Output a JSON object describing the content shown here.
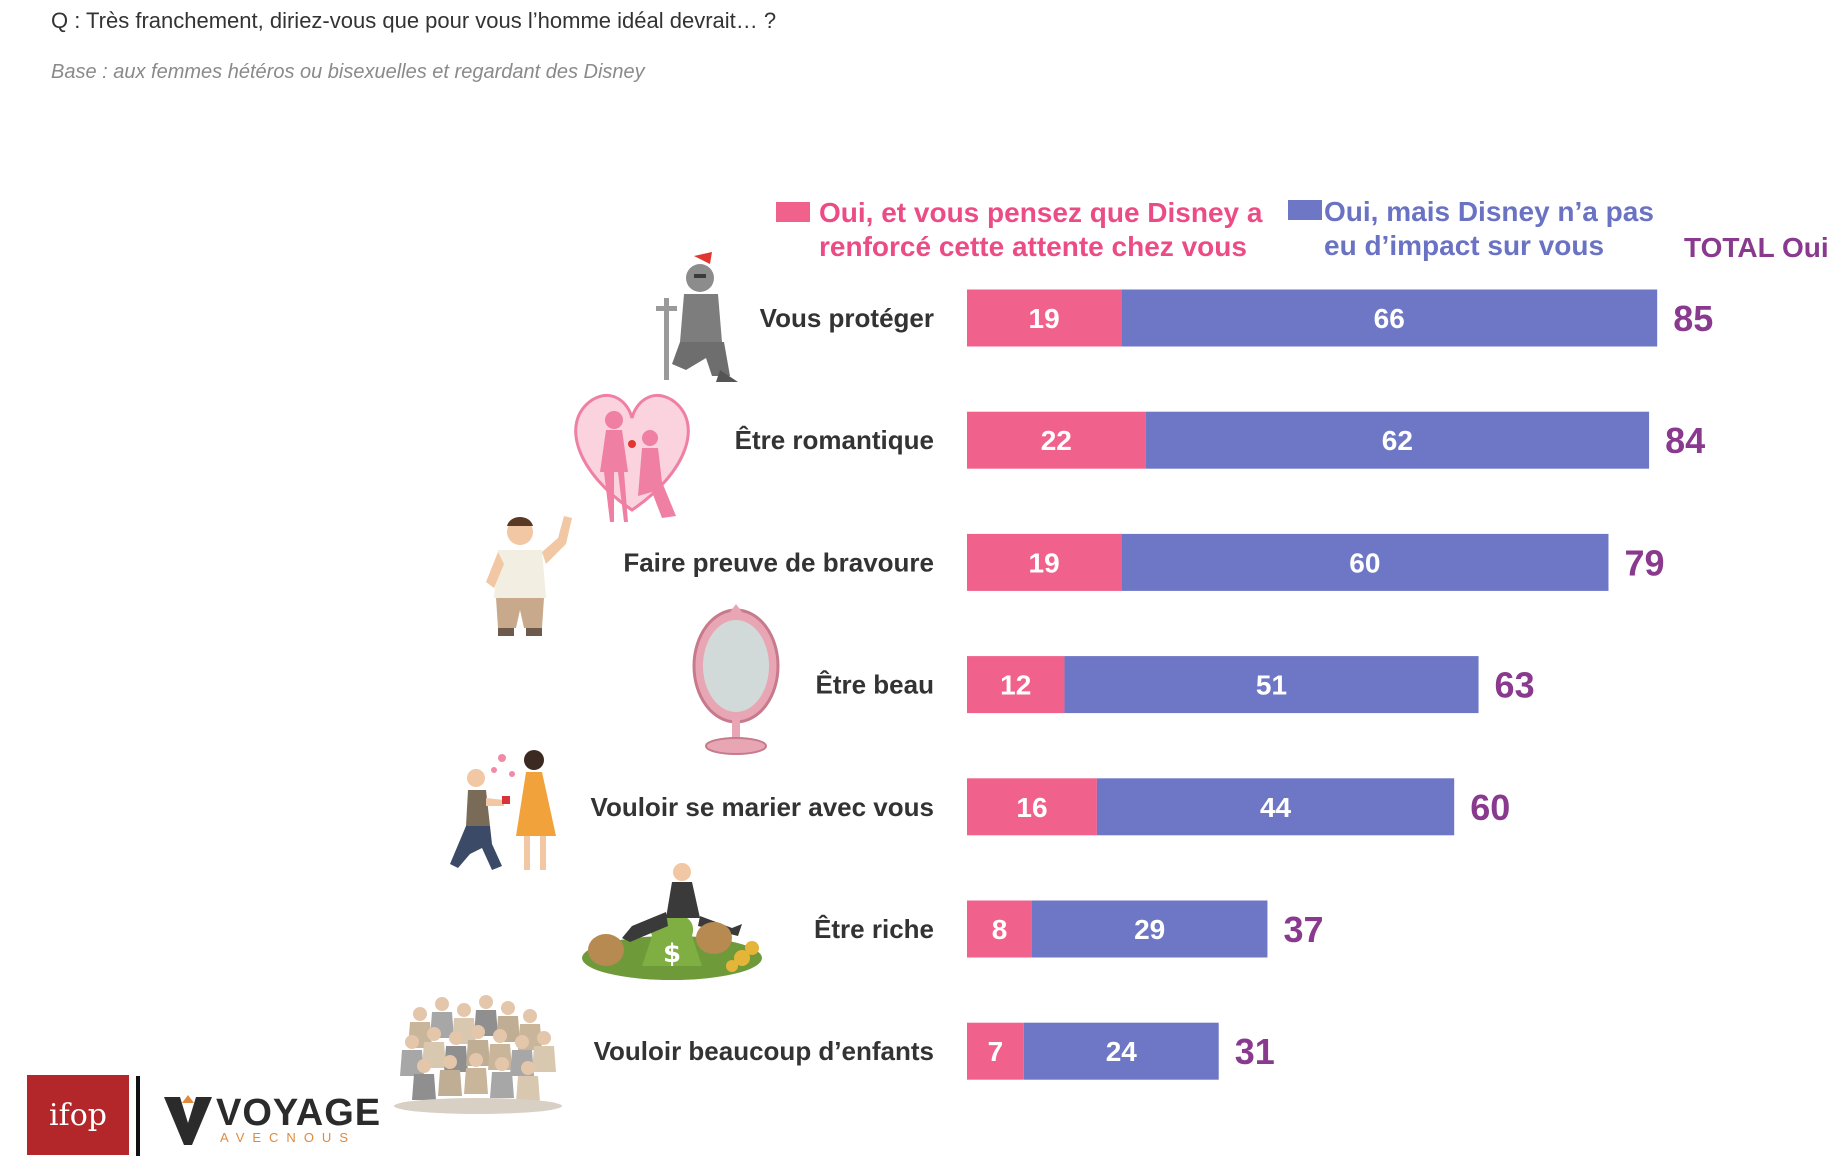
{
  "header": {
    "question": "Q : Très franchement, diriez-vous que pour vous l’homme idéal devrait… ?",
    "base": "Base : aux femmes hétéros ou bisexuelles et regardant des Disney"
  },
  "legend": {
    "pink_line1": "Oui, et vous pensez que Disney a",
    "pink_line2": "renforcé cette attente chez vous",
    "blue_line1": "Oui, mais Disney n’a pas",
    "blue_line2": "eu d’impact sur vous",
    "total": "TOTAL Oui"
  },
  "colors": {
    "pink": "#f0628c",
    "blue": "#6e76c6",
    "total": "#8a3a8e",
    "pink_text": "#ec4c86",
    "blue_text": "#6a72c4"
  },
  "icons": [
    "knight-icon",
    "romantic-couple-heart-icon",
    "brave-man-icon",
    "mirror-icon",
    "proposal-icon",
    "rich-man-money-bags-icon",
    "large-family-icon"
  ],
  "chart_data": {
    "type": "bar",
    "orientation": "horizontal",
    "stacked": true,
    "categories": [
      "Vous protéger",
      "Être romantique",
      "Faire preuve de bravoure",
      "Être beau",
      "Vouloir se marier avec vous",
      "Être riche",
      "Vouloir beaucoup d’enfants"
    ],
    "series": [
      {
        "name": "Oui, et vous pensez que Disney a renforcé cette attente chez vous",
        "values": [
          19,
          22,
          19,
          12,
          16,
          8,
          7
        ]
      },
      {
        "name": "Oui, mais Disney n’a pas eu d’impact sur vous",
        "values": [
          66,
          62,
          60,
          51,
          44,
          29,
          24
        ]
      }
    ],
    "totals": [
      85,
      84,
      79,
      63,
      60,
      37,
      31
    ],
    "legend_position": "top",
    "grid": false
  },
  "logos": {
    "ifop": "ifop",
    "voyage": "VOYAGE",
    "voyage_sub": "AVECNOUS"
  }
}
